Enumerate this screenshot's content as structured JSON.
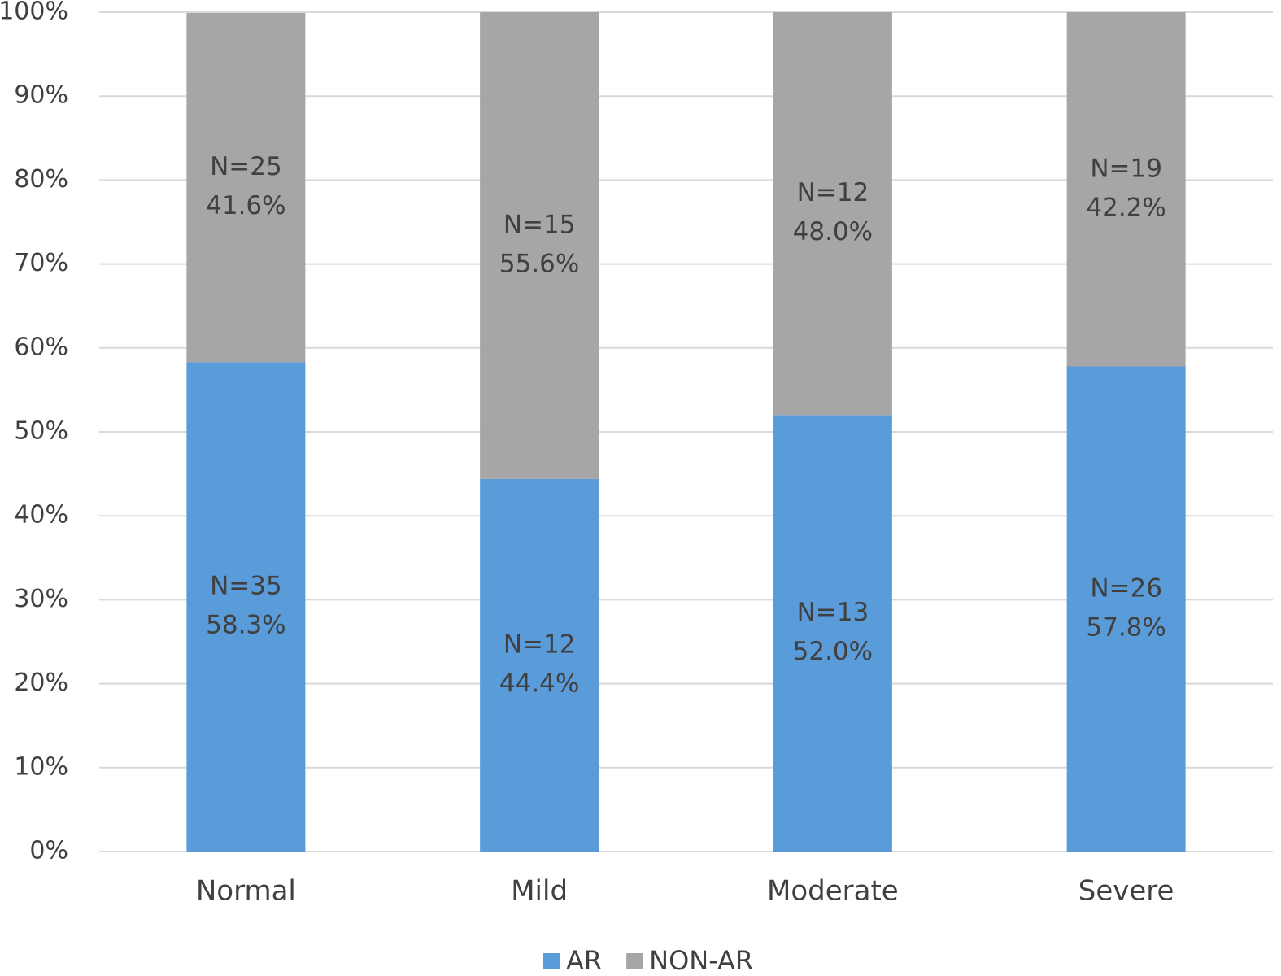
{
  "chart_data": {
    "type": "stacked_bar",
    "categories": [
      "Normal",
      "Mild",
      "Moderate",
      "Severe"
    ],
    "series": [
      {
        "name": "AR",
        "color": "#5a9bd9",
        "values": [
          58.3,
          44.4,
          52.0,
          57.8
        ],
        "value_labels": [
          "58.3%",
          "44.4%",
          "52.0%",
          "57.8%"
        ],
        "count_labels": [
          "N=35",
          "N=12",
          "N=13",
          "N=26"
        ]
      },
      {
        "name": "NON-AR",
        "color": "#a6a6a6",
        "values": [
          41.6,
          55.6,
          48.0,
          42.2
        ],
        "value_labels": [
          "41.6%",
          "55.6%",
          "48.0%",
          "42.2%"
        ],
        "count_labels": [
          "N=25",
          "N=15",
          "N=12",
          "N=19"
        ]
      }
    ],
    "ylim": [
      0,
      100
    ],
    "yticks": [
      {
        "value": 0,
        "label": "0%"
      },
      {
        "value": 10,
        "label": "10%"
      },
      {
        "value": 20,
        "label": "20%"
      },
      {
        "value": 30,
        "label": "30%"
      },
      {
        "value": 40,
        "label": "40%"
      },
      {
        "value": 50,
        "label": "50%"
      },
      {
        "value": 60,
        "label": "60%"
      },
      {
        "value": 70,
        "label": "70%"
      },
      {
        "value": 80,
        "label": "80%"
      },
      {
        "value": 90,
        "label": "90%"
      },
      {
        "value": 100,
        "label": "100%"
      }
    ],
    "grid": true,
    "legend": "bottom"
  }
}
